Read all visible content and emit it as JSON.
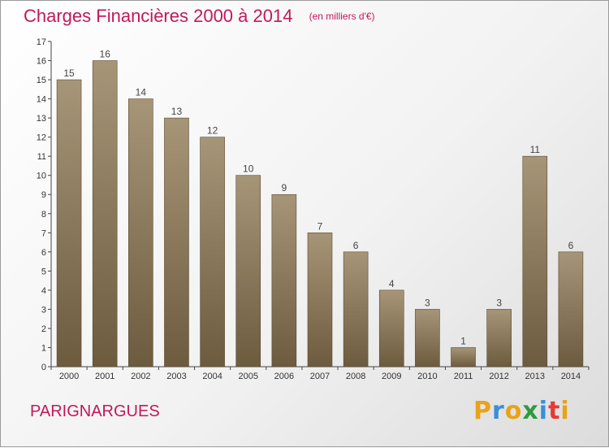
{
  "colors": {
    "title": "#c2185b",
    "bar_top": "#a79578",
    "bar_bottom": "#6d5b3f",
    "logo": [
      "#e8a317",
      "#3b8fd6",
      "#e8a317",
      "#2e9b3e",
      "#3b8fd6",
      "#e53935"
    ]
  },
  "header": {
    "title": "Charges Financières 2000 à 2014",
    "unit": "(en milliers d'€)"
  },
  "footer": {
    "commune": "PARIGNARGUES",
    "logo": "Proxiti"
  },
  "chart_data": {
    "type": "bar",
    "title": "Charges Financières 2000 à 2014",
    "subtitle": "(en milliers d'€)",
    "categories": [
      "2000",
      "2001",
      "2002",
      "2003",
      "2004",
      "2005",
      "2006",
      "2007",
      "2008",
      "2009",
      "2010",
      "2011",
      "2012",
      "2013",
      "2014"
    ],
    "values": [
      15,
      16,
      14,
      13,
      12,
      10,
      9,
      7,
      6,
      4,
      3,
      1,
      3,
      11,
      6
    ],
    "data_labels": [
      "15",
      "16",
      "14",
      "13",
      "12",
      "10",
      "9",
      "7",
      "6",
      "4",
      "3",
      "1",
      "3",
      "11",
      "6"
    ],
    "yticks": [
      0,
      1,
      2,
      3,
      4,
      5,
      6,
      7,
      8,
      9,
      10,
      11,
      12,
      13,
      14,
      15,
      16,
      17
    ],
    "ylim": [
      0,
      17
    ],
    "grid": false,
    "legend": "none"
  }
}
